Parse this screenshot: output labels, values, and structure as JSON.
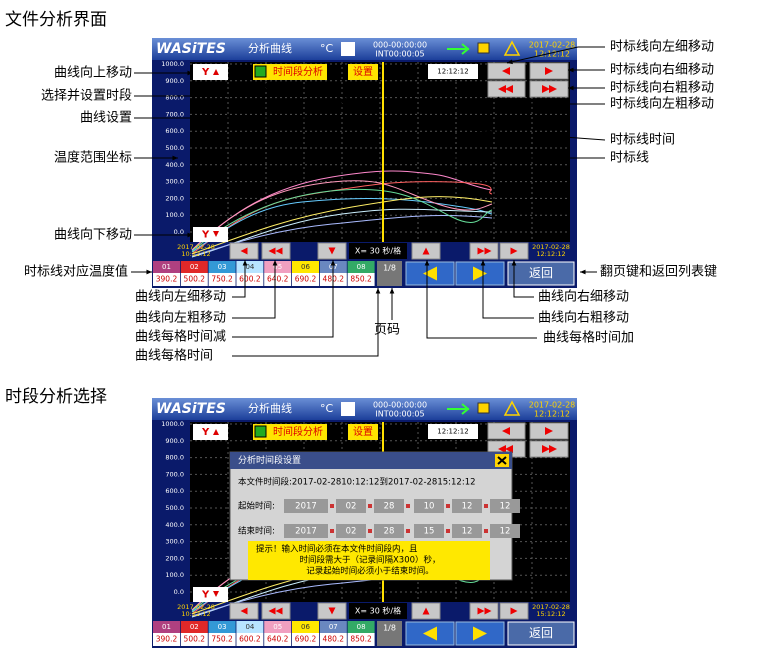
{
  "sections": [
    {
      "title": "文件分析界面"
    },
    {
      "title": "时段分析选择"
    }
  ],
  "screen": {
    "logo": "WASiTES",
    "mode": "分析曲线",
    "unit": "°C",
    "counter": "000-00:00:00",
    "interval": "INT00:00:05",
    "date": "2017-02-28",
    "time": "12:12:12",
    "y_labels": [
      "1000.0",
      "900.0",
      "800.0",
      "700.0",
      "600.0",
      "500.0",
      "400.0",
      "300.0",
      "200.0",
      "100.0",
      "0.0"
    ],
    "up_button": "Y",
    "down_button": "Y",
    "segment_button": "时间段分析",
    "settings_button": "设置",
    "cursor_time": "12:12:12",
    "start_date": "2017-02-28",
    "start_time": "10:12:12",
    "scale": "X= 30 秒/格",
    "end_date": "2017-02-28",
    "channels": [
      {
        "id": "01",
        "value": 390.2
      },
      {
        "id": "02",
        "value": 500.2
      },
      {
        "id": "03",
        "value": 750.2
      },
      {
        "id": "04",
        "value": 600.2
      },
      {
        "id": "05",
        "value": 640.2
      },
      {
        "id": "06",
        "value": 690.2
      },
      {
        "id": "07",
        "value": 480.2
      },
      {
        "id": "08",
        "value": 850.2
      }
    ],
    "page": "1/8",
    "back": "返回"
  },
  "screens": [
    {
      "end_time": "12:12:12"
    },
    {
      "end_time": "15:12:12"
    }
  ],
  "annotations": [
    "曲线向上移动",
    "选择并设置时段",
    "曲线设置",
    "温度范围坐标",
    "曲线向下移动",
    "时标线对应温度值",
    "曲线向左细移动",
    "曲线向左粗移动",
    "曲线每格时间减",
    "曲线每格时间",
    "页码",
    "曲线每格时间加",
    "曲线向右粗移动",
    "曲线向右细移动",
    "翻页键和返回列表键",
    "时标线向左细移动",
    "时标线向右细移动",
    "时标线向右粗移动",
    "时标线向左粗移动",
    "时标线时间",
    "时标线"
  ],
  "dialog": {
    "title": "分析时间段设置",
    "file_range": "本文件时间段:2017-02-2810:12:12到2017-02-2815:12:12",
    "start_label": "起始时间:",
    "start": [
      "2017",
      "02",
      "28",
      "10",
      "12",
      "12"
    ],
    "end_label": "结束时间:",
    "end": [
      "2017",
      "02",
      "28",
      "15",
      "12",
      "12"
    ],
    "notice": [
      "提示！输入时间必须在本文件时间段内，且",
      "时间段需大于（记录间隔X300）秒，",
      "记录起始时间必须小于结束时间。"
    ]
  }
}
